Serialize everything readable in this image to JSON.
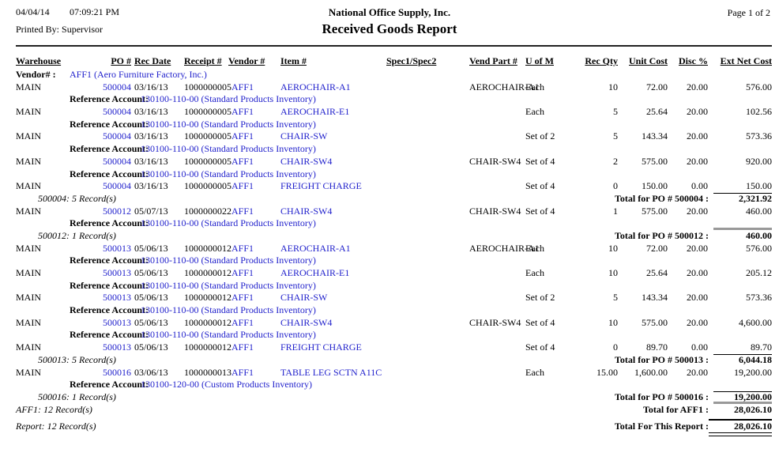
{
  "colors": {
    "link_blue": "#2222CC",
    "rule_gray": "#999999",
    "text": "#000000"
  },
  "header": {
    "date": "04/04/14",
    "time": "07:09:21 PM",
    "printed_by_label": "Printed By:",
    "printed_by_value": "Supervisor",
    "company": "National Office Supply, Inc.",
    "title": "Received Goods Report",
    "page": "Page 1 of  2"
  },
  "columns": [
    {
      "key": "wh",
      "label": "Warehouse"
    },
    {
      "key": "po",
      "label": "PO #"
    },
    {
      "key": "date",
      "label": "Rec Date"
    },
    {
      "key": "rcpt",
      "label": "Receipt #"
    },
    {
      "key": "vend",
      "label": "Vendor #"
    },
    {
      "key": "item",
      "label": "Item #"
    },
    {
      "key": "spec",
      "label": "Spec1/Spec2"
    },
    {
      "key": "vp",
      "label": "Vend Part #"
    },
    {
      "key": "uom",
      "label": "U of M"
    },
    {
      "key": "qty",
      "label": "Rec Qty"
    },
    {
      "key": "unit",
      "label": "Unit Cost"
    },
    {
      "key": "disc",
      "label": "Disc %"
    },
    {
      "key": "ext",
      "label": "Ext Net Cost"
    }
  ],
  "vendor_line": {
    "label": "Vendor# :",
    "value": "AFF1 (Aero Furniture Factory, Inc.)"
  },
  "reference_label": "Reference Account:",
  "lines": [
    {
      "type": "item",
      "warehouse": "MAIN",
      "po": "500004",
      "rec_date": "03/16/13",
      "receipt": "1000000005",
      "vendor": "AFF1",
      "item": "AEROCHAIR-A1",
      "vend_part": "AEROCHAIR-A1",
      "uofm": "Each",
      "rec_qty": "10",
      "unit_cost": "72.00",
      "disc": "20.00",
      "ext": "576.00"
    },
    {
      "type": "ref",
      "account": "130100-110-00",
      "desc": "(Standard Products Inventory)"
    },
    {
      "type": "item",
      "warehouse": "MAIN",
      "po": "500004",
      "rec_date": "03/16/13",
      "receipt": "1000000005",
      "vendor": "AFF1",
      "item": "AEROCHAIR-E1",
      "vend_part": "",
      "uofm": "Each",
      "rec_qty": "5",
      "unit_cost": "25.64",
      "disc": "20.00",
      "ext": "102.56"
    },
    {
      "type": "ref",
      "account": "130100-110-00",
      "desc": "(Standard Products Inventory)"
    },
    {
      "type": "item",
      "warehouse": "MAIN",
      "po": "500004",
      "rec_date": "03/16/13",
      "receipt": "1000000005",
      "vendor": "AFF1",
      "item": "CHAIR-SW",
      "vend_part": "",
      "uofm": "Set of 2",
      "rec_qty": "5",
      "unit_cost": "143.34",
      "disc": "20.00",
      "ext": "573.36"
    },
    {
      "type": "ref",
      "account": "130100-110-00",
      "desc": "(Standard Products Inventory)"
    },
    {
      "type": "item",
      "warehouse": "MAIN",
      "po": "500004",
      "rec_date": "03/16/13",
      "receipt": "1000000005",
      "vendor": "AFF1",
      "item": "CHAIR-SW4",
      "vend_part": "CHAIR-SW4",
      "uofm": "Set of 4",
      "rec_qty": "2",
      "unit_cost": "575.00",
      "disc": "20.00",
      "ext": "920.00"
    },
    {
      "type": "ref",
      "account": "130100-110-00",
      "desc": "(Standard Products Inventory)"
    },
    {
      "type": "item",
      "warehouse": "MAIN",
      "po": "500004",
      "rec_date": "03/16/13",
      "receipt": "1000000005",
      "vendor": "AFF1",
      "item": "FREIGHT CHARGE",
      "vend_part": "",
      "uofm": "Set of 4",
      "rec_qty": "0",
      "unit_cost": "150.00",
      "disc": "0.00",
      "ext": "150.00"
    },
    {
      "type": "subtotal",
      "records": "500004: 5 Record(s)",
      "label": "Total for PO # 500004 :",
      "value": "2,321.92",
      "rule": "thin"
    },
    {
      "type": "item",
      "warehouse": "MAIN",
      "po": "500012",
      "rec_date": "05/07/13",
      "receipt": "1000000022",
      "vendor": "AFF1",
      "item": "CHAIR-SW4",
      "vend_part": "CHAIR-SW4",
      "uofm": "Set of 4",
      "rec_qty": "1",
      "unit_cost": "575.00",
      "disc": "20.00",
      "ext": "460.00"
    },
    {
      "type": "ref",
      "account": "130100-110-00",
      "desc": "(Standard Products Inventory)"
    },
    {
      "type": "subtotal",
      "records": "500012: 1 Record(s)",
      "label": "Total for PO # 500012 :",
      "value": "460.00",
      "rule": "thick"
    },
    {
      "type": "item",
      "warehouse": "MAIN",
      "po": "500013",
      "rec_date": "05/06/13",
      "receipt": "1000000012",
      "vendor": "AFF1",
      "item": "AEROCHAIR-A1",
      "vend_part": "AEROCHAIR-A1",
      "uofm": "Each",
      "rec_qty": "10",
      "unit_cost": "72.00",
      "disc": "20.00",
      "ext": "576.00"
    },
    {
      "type": "ref",
      "account": "130100-110-00",
      "desc": "(Standard Products Inventory)"
    },
    {
      "type": "item",
      "warehouse": "MAIN",
      "po": "500013",
      "rec_date": "05/06/13",
      "receipt": "1000000012",
      "vendor": "AFF1",
      "item": "AEROCHAIR-E1",
      "vend_part": "",
      "uofm": "Each",
      "rec_qty": "10",
      "unit_cost": "25.64",
      "disc": "20.00",
      "ext": "205.12"
    },
    {
      "type": "ref",
      "account": "130100-110-00",
      "desc": "(Standard Products Inventory)"
    },
    {
      "type": "item",
      "warehouse": "MAIN",
      "po": "500013",
      "rec_date": "05/06/13",
      "receipt": "1000000012",
      "vendor": "AFF1",
      "item": "CHAIR-SW",
      "vend_part": "",
      "uofm": "Set of 2",
      "rec_qty": "5",
      "unit_cost": "143.34",
      "disc": "20.00",
      "ext": "573.36"
    },
    {
      "type": "ref",
      "account": "130100-110-00",
      "desc": "(Standard Products Inventory)"
    },
    {
      "type": "item",
      "warehouse": "MAIN",
      "po": "500013",
      "rec_date": "05/06/13",
      "receipt": "1000000012",
      "vendor": "AFF1",
      "item": "CHAIR-SW4",
      "vend_part": "CHAIR-SW4",
      "uofm": "Set of 4",
      "rec_qty": "10",
      "unit_cost": "575.00",
      "disc": "20.00",
      "ext": "4,600.00"
    },
    {
      "type": "ref",
      "account": "130100-110-00",
      "desc": "(Standard Products Inventory)"
    },
    {
      "type": "item",
      "warehouse": "MAIN",
      "po": "500013",
      "rec_date": "05/06/13",
      "receipt": "1000000012",
      "vendor": "AFF1",
      "item": "FREIGHT CHARGE",
      "vend_part": "",
      "uofm": "Set of 4",
      "rec_qty": "0",
      "unit_cost": "89.70",
      "disc": "0.00",
      "ext": "89.70"
    },
    {
      "type": "subtotal",
      "records": "500013: 5 Record(s)",
      "label": "Total for PO # 500013 :",
      "value": "6,044.18",
      "rule": "thin"
    },
    {
      "type": "item",
      "warehouse": "MAIN",
      "po": "500016",
      "rec_date": "03/06/13",
      "receipt": "1000000013",
      "vendor": "AFF1",
      "item": "TABLE LEG SCTN A11C",
      "vend_part": "",
      "uofm": "Each",
      "rec_qty": "15.00",
      "unit_cost": "1,600.00",
      "disc": "20.00",
      "ext": "19,200.00"
    },
    {
      "type": "ref",
      "account": "130100-120-00",
      "desc": "(Custom Products Inventory)"
    },
    {
      "type": "subtotal",
      "records": "500016: 1 Record(s)",
      "label": "Total for PO # 500016 :",
      "value": "19,200.00",
      "rule": "thin"
    },
    {
      "type": "vendor_total",
      "records": "AFF1: 12 Record(s)",
      "label": "Total for AFF1 :",
      "value": "28,026.10",
      "rule": "thick"
    },
    {
      "type": "report_total",
      "records": "Report: 12 Record(s)",
      "label": "Total For This Report :",
      "value": "28,026.10",
      "rule": "report"
    }
  ]
}
